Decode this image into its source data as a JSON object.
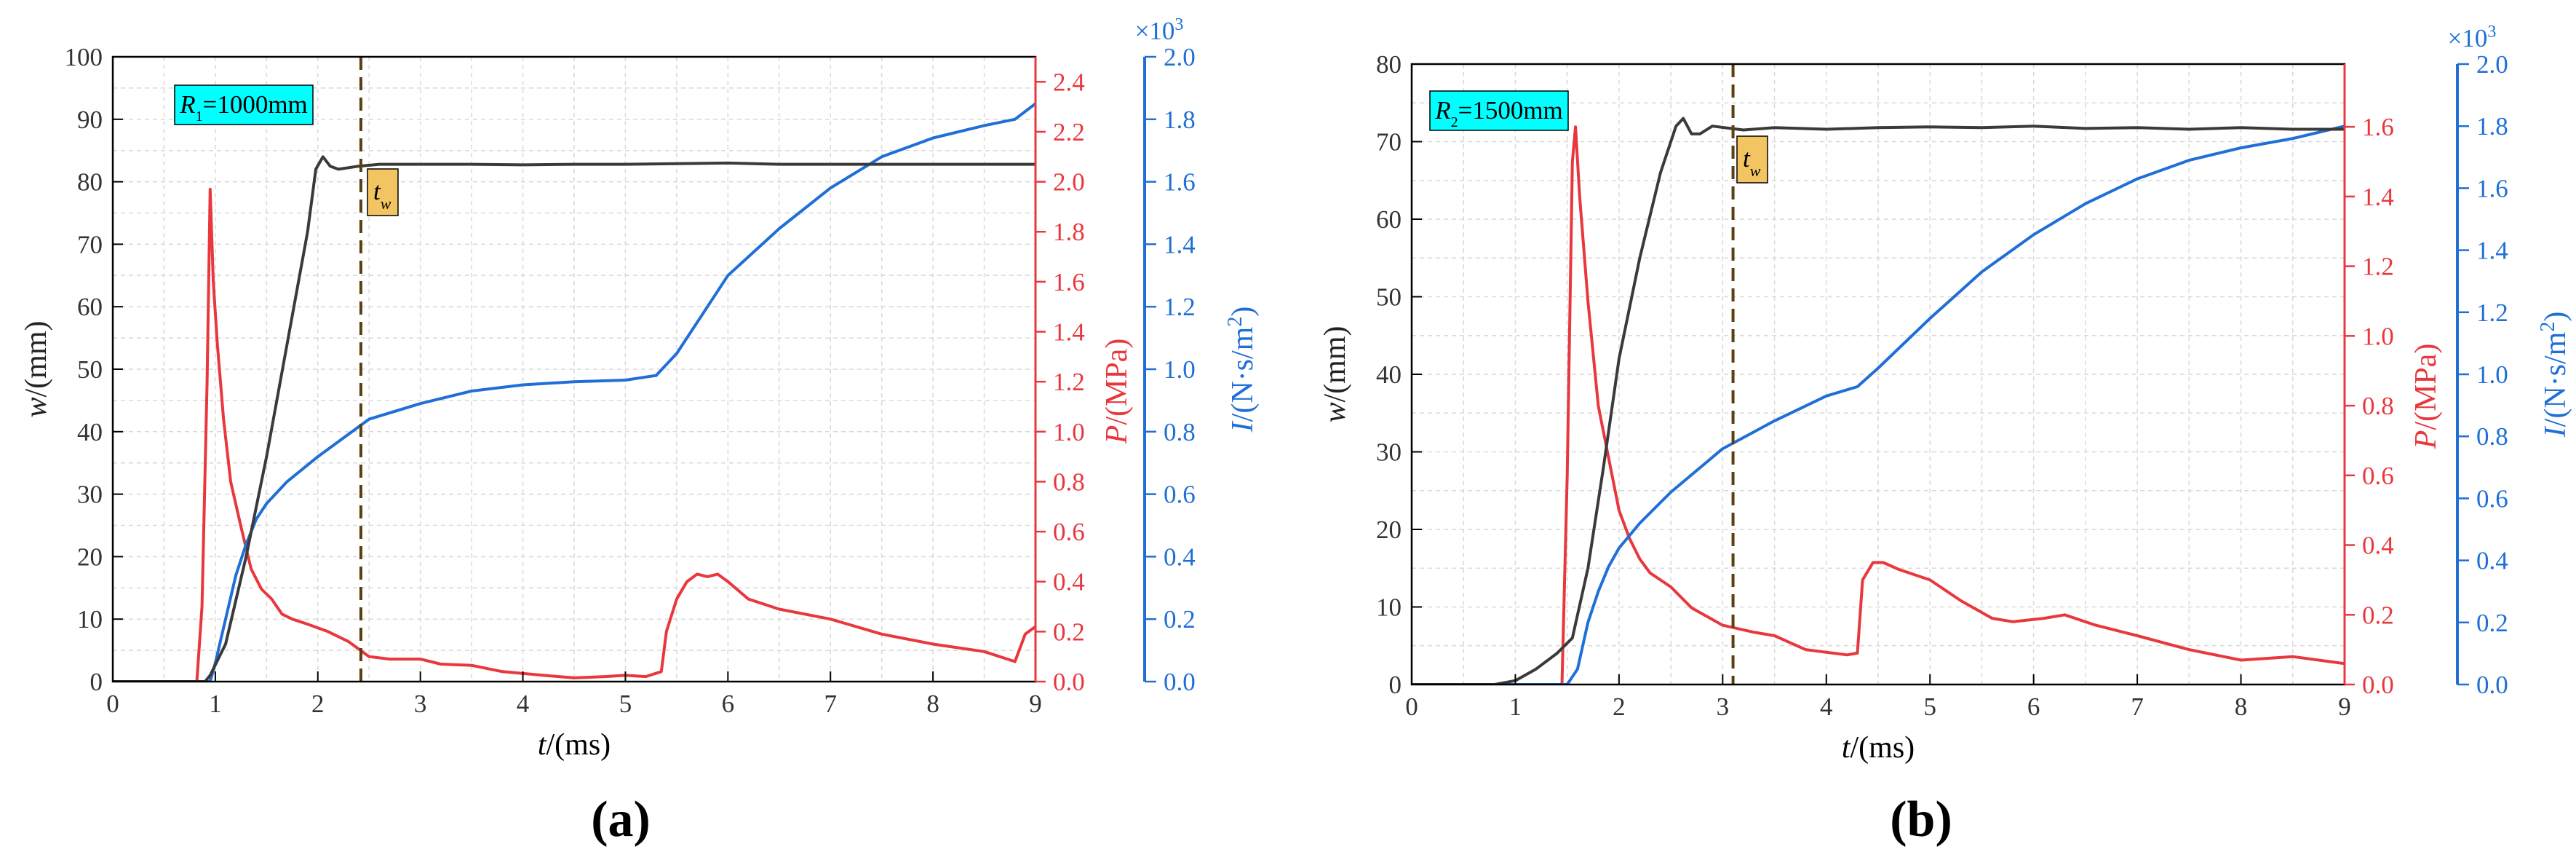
{
  "colors": {
    "w": "#3a3a3a",
    "P": "#e8383d",
    "I": "#1f6fd6",
    "label_box": "#00ffff",
    "tw_box": "#f2c462",
    "tw_line": "#5a4010",
    "grid": "#d9d9d9"
  },
  "chart_data": [
    {
      "type": "line",
      "panel_label": "(a)",
      "box_label": {
        "main": "R",
        "sub": "1",
        "rest": "=1000mm"
      },
      "marker": {
        "label": "t",
        "sub": "w",
        "x": 2.42
      },
      "xlabel": {
        "var": "t",
        "unit": "/(ms)"
      },
      "ylabel_left": {
        "var": "w",
        "unit": "/(mm)"
      },
      "ylabel_right1": {
        "var": "P",
        "unit": "/(MPa)"
      },
      "ylabel_right2": {
        "var": "I",
        "unit": "/(N·s/m",
        "sup": "2",
        "close": ")"
      },
      "exponent": "×10",
      "exponent_sup": "3",
      "xlim": [
        0,
        9
      ],
      "xticks": [
        "0",
        "1",
        "2",
        "3",
        "4",
        "5",
        "6",
        "7",
        "8",
        "9"
      ],
      "w_axis": {
        "lim": [
          0,
          100
        ],
        "ticks": [
          "0",
          "10",
          "20",
          "30",
          "40",
          "50",
          "60",
          "70",
          "80",
          "90",
          "100"
        ]
      },
      "P_axis": {
        "lim": [
          0,
          2.5
        ],
        "ticks": [
          "0.0",
          "0.2",
          "0.4",
          "0.6",
          "0.8",
          "1.0",
          "1.2",
          "1.4",
          "1.6",
          "1.8",
          "2.0",
          "2.2",
          "2.4"
        ]
      },
      "I_axis": {
        "lim": [
          0,
          2.0
        ],
        "ticks": [
          "0.0",
          "0.2",
          "0.4",
          "0.6",
          "0.8",
          "1.0",
          "1.2",
          "1.4",
          "1.6",
          "1.8",
          "2.0"
        ]
      },
      "series": [
        {
          "key": "w",
          "axis": "w",
          "x": [
            0,
            0.9,
            0.95,
            1.1,
            1.3,
            1.5,
            1.7,
            1.9,
            1.98,
            2.05,
            2.12,
            2.2,
            2.4,
            2.6,
            3,
            3.5,
            4,
            4.5,
            5,
            5.5,
            6,
            6.5,
            7,
            7.5,
            8,
            8.5,
            9
          ],
          "y": [
            0,
            0,
            1,
            6,
            20,
            36,
            54,
            72,
            82,
            84,
            82.5,
            82,
            82.5,
            82.8,
            82.8,
            82.8,
            82.7,
            82.8,
            82.8,
            82.9,
            83,
            82.8,
            82.8,
            82.8,
            82.8,
            82.8,
            82.8
          ]
        },
        {
          "key": "P",
          "axis": "P",
          "x": [
            0,
            0.82,
            0.87,
            0.92,
            0.95,
            0.98,
            1.02,
            1.08,
            1.15,
            1.25,
            1.35,
            1.45,
            1.55,
            1.65,
            1.75,
            1.9,
            2.1,
            2.3,
            2.5,
            2.7,
            3,
            3.2,
            3.5,
            3.8,
            4.2,
            4.5,
            4.8,
            5,
            5.2,
            5.35,
            5.4,
            5.5,
            5.6,
            5.7,
            5.8,
            5.9,
            6,
            6.2,
            6.5,
            7,
            7.5,
            8,
            8.5,
            8.8,
            8.9,
            9
          ],
          "y": [
            0,
            0,
            0.3,
            1.2,
            1.97,
            1.6,
            1.35,
            1.05,
            0.8,
            0.62,
            0.45,
            0.37,
            0.33,
            0.27,
            0.25,
            0.23,
            0.2,
            0.16,
            0.1,
            0.09,
            0.09,
            0.07,
            0.065,
            0.04,
            0.025,
            0.015,
            0.02,
            0.025,
            0.02,
            0.04,
            0.2,
            0.33,
            0.4,
            0.43,
            0.42,
            0.43,
            0.4,
            0.33,
            0.29,
            0.25,
            0.19,
            0.15,
            0.12,
            0.08,
            0.19,
            0.22
          ]
        },
        {
          "key": "I",
          "axis": "I",
          "x": [
            0,
            0.95,
            1.0,
            1.1,
            1.2,
            1.3,
            1.4,
            1.5,
            1.7,
            2.0,
            2.5,
            3,
            3.5,
            4,
            4.5,
            5,
            5.3,
            5.5,
            5.8,
            6,
            6.5,
            7,
            7.5,
            8,
            8.5,
            8.8,
            9
          ],
          "y": [
            0,
            0,
            0.06,
            0.2,
            0.34,
            0.44,
            0.52,
            0.57,
            0.64,
            0.72,
            0.84,
            0.89,
            0.93,
            0.95,
            0.96,
            0.965,
            0.98,
            1.05,
            1.2,
            1.3,
            1.45,
            1.58,
            1.68,
            1.74,
            1.78,
            1.8,
            1.85
          ]
        }
      ]
    },
    {
      "type": "line",
      "panel_label": "(b)",
      "box_label": {
        "main": "R",
        "sub": "2",
        "rest": "=1500mm"
      },
      "marker": {
        "label": "t",
        "sub": "w",
        "x": 3.1
      },
      "xlabel": {
        "var": "t",
        "unit": "/(ms)"
      },
      "ylabel_left": {
        "var": "w",
        "unit": "/(mm)"
      },
      "ylabel_right1": {
        "var": "P",
        "unit": "/(MPa)"
      },
      "ylabel_right2": {
        "var": "I",
        "unit": "/(N·s/m",
        "sup": "2",
        "close": ")"
      },
      "exponent": "×10",
      "exponent_sup": "3",
      "xlim": [
        0,
        9
      ],
      "xticks": [
        "0",
        "1",
        "2",
        "3",
        "4",
        "5",
        "6",
        "7",
        "8",
        "9"
      ],
      "w_axis": {
        "lim": [
          0,
          80
        ],
        "ticks": [
          "0",
          "10",
          "20",
          "30",
          "40",
          "50",
          "60",
          "70",
          "80"
        ]
      },
      "P_axis": {
        "lim": [
          0,
          1.78
        ],
        "ticks": [
          "0.0",
          "0.2",
          "0.4",
          "0.6",
          "0.8",
          "1.0",
          "1.2",
          "1.4",
          "1.6"
        ]
      },
      "I_axis": {
        "lim": [
          0,
          2.0
        ],
        "ticks": [
          "0.0",
          "0.2",
          "0.4",
          "0.6",
          "0.8",
          "1.0",
          "1.2",
          "1.4",
          "1.6",
          "1.8",
          "2.0"
        ]
      },
      "series": [
        {
          "key": "w",
          "axis": "w",
          "x": [
            0,
            0.8,
            1.0,
            1.2,
            1.4,
            1.55,
            1.7,
            1.85,
            2.0,
            2.2,
            2.4,
            2.55,
            2.62,
            2.7,
            2.78,
            2.9,
            3.2,
            3.5,
            4,
            4.5,
            5,
            5.5,
            6,
            6.5,
            7,
            7.5,
            8,
            8.5,
            9
          ],
          "y": [
            0,
            0,
            0.5,
            2,
            4,
            6,
            15,
            28,
            42,
            55,
            66,
            72,
            73,
            71,
            71,
            72,
            71.5,
            71.8,
            71.6,
            71.8,
            71.9,
            71.8,
            72,
            71.7,
            71.8,
            71.6,
            71.8,
            71.6,
            71.6
          ]
        },
        {
          "key": "P",
          "axis": "P",
          "x": [
            0,
            1.45,
            1.5,
            1.55,
            1.58,
            1.62,
            1.7,
            1.8,
            1.9,
            2.0,
            2.1,
            2.2,
            2.3,
            2.5,
            2.7,
            3,
            3.3,
            3.5,
            3.8,
            4.2,
            4.3,
            4.35,
            4.45,
            4.55,
            4.7,
            5,
            5.3,
            5.6,
            5.8,
            6.1,
            6.3,
            6.6,
            7,
            7.5,
            8,
            8.5,
            9
          ],
          "y": [
            0,
            0,
            0.6,
            1.5,
            1.6,
            1.4,
            1.1,
            0.8,
            0.65,
            0.5,
            0.42,
            0.36,
            0.32,
            0.28,
            0.22,
            0.17,
            0.15,
            0.14,
            0.1,
            0.085,
            0.09,
            0.3,
            0.35,
            0.35,
            0.33,
            0.3,
            0.24,
            0.19,
            0.18,
            0.19,
            0.2,
            0.17,
            0.14,
            0.1,
            0.07,
            0.08,
            0.06
          ]
        },
        {
          "key": "I",
          "axis": "I",
          "x": [
            0,
            1.5,
            1.6,
            1.7,
            1.8,
            1.9,
            2.0,
            2.2,
            2.5,
            3,
            3.5,
            4,
            4.3,
            4.5,
            5,
            5.5,
            6,
            6.5,
            7,
            7.5,
            8,
            8.5,
            9
          ],
          "y": [
            0,
            0,
            0.05,
            0.2,
            0.3,
            0.38,
            0.44,
            0.52,
            0.62,
            0.76,
            0.85,
            0.93,
            0.96,
            1.02,
            1.18,
            1.33,
            1.45,
            1.55,
            1.63,
            1.69,
            1.73,
            1.76,
            1.8
          ]
        }
      ]
    }
  ]
}
